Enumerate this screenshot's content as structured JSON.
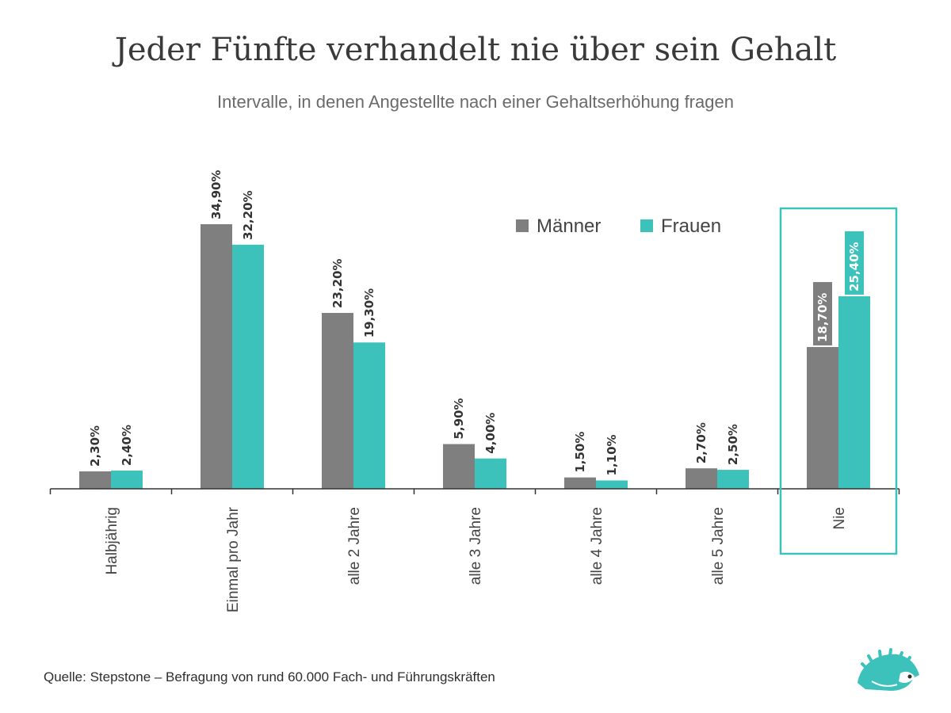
{
  "header": {
    "title": "Jeder Fünfte verhandelt nie über sein Gehalt",
    "subtitle": "Intervalle, in denen Angestellte nach einer Gehaltserhöhung fragen"
  },
  "footer": {
    "source": "Quelle: Stepstone – Befragung von rund 60.000 Fach- und Führungskräften"
  },
  "logo": {
    "icon": "hedgehog-logo-icon"
  },
  "colors": {
    "maenner": "#7f7f7f",
    "frauen": "#3cc2bb",
    "axis": "#333333",
    "highlight": "#3cc2bb"
  },
  "chart_data": {
    "type": "bar",
    "title": "Jeder Fünfte verhandelt nie über sein Gehalt",
    "subtitle": "Intervalle, in denen Angestellte nach einer Gehaltserhöhung fragen",
    "xlabel": "",
    "ylabel": "",
    "ylim": [
      0,
      35
    ],
    "grid": false,
    "legend_position": "top-right",
    "categories": [
      "Halbjährig",
      "Einmal pro Jahr",
      "alle 2 Jahre",
      "alle 3 Jahre",
      "alle 4 Jahre",
      "alle 5 Jahre",
      "Nie"
    ],
    "highlighted_category": "Nie",
    "series": [
      {
        "name": "Männer",
        "values": [
          2.3,
          34.9,
          23.2,
          5.9,
          1.5,
          2.7,
          18.7
        ],
        "labels": [
          "2,30%",
          "34,90%",
          "23,20%",
          "5,90%",
          "1,50%",
          "2,70%",
          "18,70%"
        ]
      },
      {
        "name": "Frauen",
        "values": [
          2.4,
          32.2,
          19.3,
          4.0,
          1.1,
          2.5,
          25.4
        ],
        "labels": [
          "2,40%",
          "32,20%",
          "19,30%",
          "4,00%",
          "1,10%",
          "2,50%",
          "25,40%"
        ]
      }
    ]
  }
}
